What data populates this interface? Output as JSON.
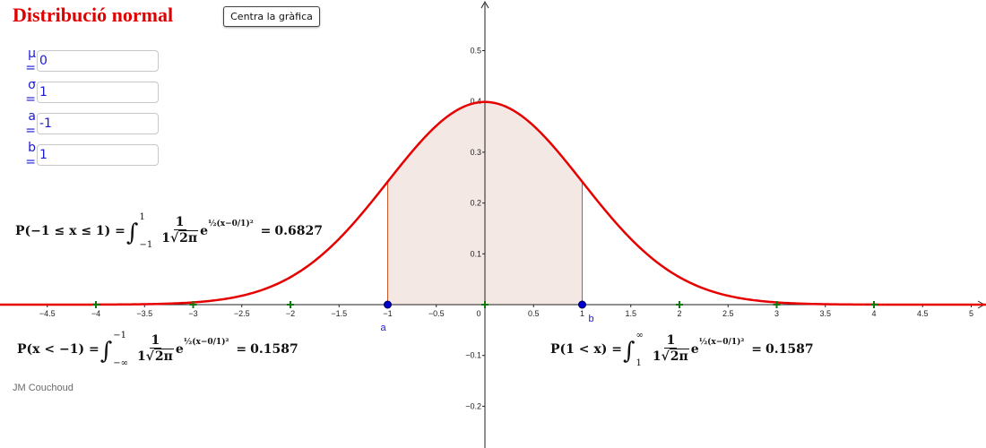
{
  "title": "Distribució normal",
  "center_button_label": "Centra la gràfica",
  "inputs": [
    {
      "label": "μ =",
      "value": "0"
    },
    {
      "label": "σ =",
      "value": "1"
    },
    {
      "label": "a =",
      "value": "-1"
    },
    {
      "label": "b =",
      "value": "1"
    }
  ],
  "formulas": {
    "middle": {
      "left": "P(−1 ≤ x ≤ 1) =",
      "upper": "1",
      "lower": "−1",
      "result": "0.6827"
    },
    "left_tail": {
      "left": "P(x < −1) =",
      "upper": "−1",
      "lower": "−∞",
      "result": "0.1587"
    },
    "right_tail": {
      "left": "P(1 < x) =",
      "upper": "∞",
      "lower": "1",
      "result": "0.1587"
    },
    "integrand": {
      "numerator": "1",
      "den_coef": "1",
      "den_rad": "2π",
      "exp_base": "e",
      "exponent": "½(x−0/1)²",
      "equals": "="
    }
  },
  "credit": "JM Couchoud",
  "chart_data": {
    "type": "line",
    "function": "normal_pdf",
    "mu": 0,
    "sigma": 1,
    "a": -1,
    "b": 1,
    "xlim": [
      -5,
      5
    ],
    "ylim": [
      -0.27,
      0.57
    ],
    "x_ticks": [
      -4.5,
      -4,
      -3.5,
      -3,
      -2.5,
      -2,
      -1.5,
      -1,
      -0.5,
      0,
      0.5,
      1,
      1.5,
      2,
      2.5,
      3,
      3.5,
      4,
      4.5,
      5
    ],
    "x_tick_labels": [
      "−4.5",
      "−4",
      "−3.5",
      "−3",
      "−2.5",
      "−2",
      "−1.5",
      "−1",
      "−0.5",
      "0",
      "0.5",
      "1",
      "1.5",
      "2",
      "2.5",
      "3",
      "3.5",
      "4",
      "4.5",
      "5"
    ],
    "y_ticks": [
      -0.2,
      -0.1,
      0.1,
      0.2,
      0.3,
      0.4,
      0.5
    ],
    "y_tick_labels": [
      "−0.2",
      "−0.1",
      "0.1",
      "0.2",
      "0.3",
      "0.4",
      "0.5"
    ],
    "integer_marks": [
      -4,
      -3,
      -2,
      -1,
      0,
      1,
      2,
      3,
      4
    ],
    "points": [
      {
        "name": "a",
        "x": -1,
        "y": 0
      },
      {
        "name": "b",
        "x": 1,
        "y": 0
      }
    ],
    "colors": {
      "curve": "#e60000",
      "fill": "#f3e8e4",
      "fill_edge": "#cc5522",
      "points": "#0000cc",
      "integer_marks": "#117711",
      "axes": "#222222"
    }
  }
}
